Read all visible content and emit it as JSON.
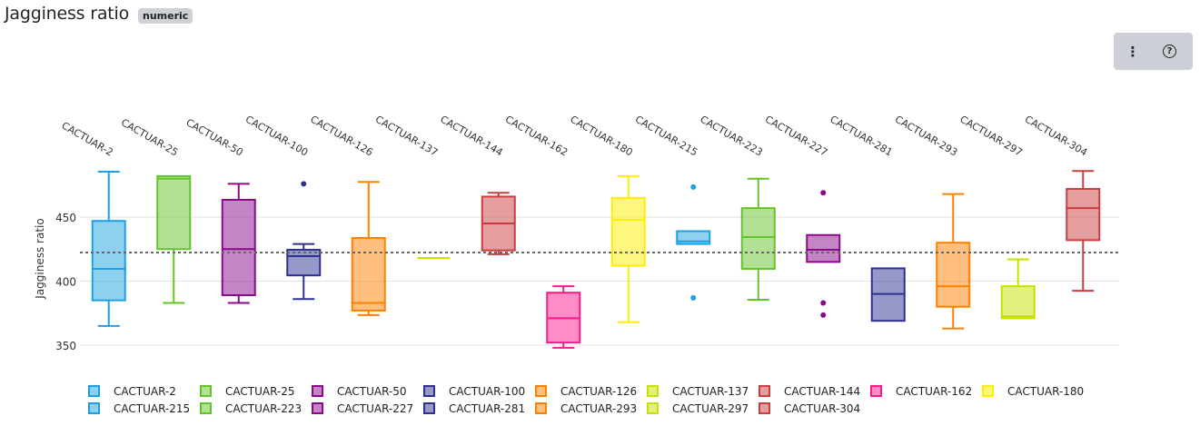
{
  "header": {
    "title": "Jagginess ratio",
    "badge": "numeric"
  },
  "toolbar": {
    "menu_icon": "more-vertical-icon",
    "help_icon": "help-circle-icon",
    "menu_glyph": "⋮",
    "help_glyph": "?"
  },
  "chart_data": {
    "type": "box",
    "title": "",
    "ylabel": "Jagginess ratio",
    "ylim": [
      343,
      495
    ],
    "yticks": [
      350,
      400,
      450
    ],
    "grid": true,
    "reference_line": 422.3,
    "legend_position": "bottom",
    "palette": [
      "#1ba1e2",
      "#66c22b",
      "#8b0a8b",
      "#2e3192",
      "#ff8000",
      "#c8e000",
      "#cc3d3d",
      "#ff1a8c",
      "#ffee00"
    ],
    "series": [
      {
        "name": "CACTUAR-2",
        "min": 365,
        "q1": 385,
        "median": 409.6,
        "q3": 447,
        "max": 485.5,
        "outliers": []
      },
      {
        "name": "CACTUAR-25",
        "min": 383,
        "q1": 425,
        "median": 480,
        "q3": 482,
        "max": 482,
        "outliers": []
      },
      {
        "name": "CACTUAR-50",
        "min": 383,
        "q1": 389,
        "median": 425,
        "q3": 463.5,
        "max": 476,
        "outliers": []
      },
      {
        "name": "CACTUAR-100",
        "min": 386,
        "q1": 404.5,
        "median": 419.5,
        "q3": 424.5,
        "max": 429,
        "outliers": [
          476
        ]
      },
      {
        "name": "CACTUAR-126",
        "min": 373.5,
        "q1": 377,
        "median": 383,
        "q3": 433.7,
        "max": 477.5,
        "outliers": []
      },
      {
        "name": "CACTUAR-137",
        "min": 418,
        "q1": 418,
        "median": 418,
        "q3": 418,
        "max": 418,
        "outliers": []
      },
      {
        "name": "CACTUAR-144",
        "min": 421,
        "q1": 424,
        "median": 445,
        "q3": 466,
        "max": 469,
        "outliers": []
      },
      {
        "name": "CACTUAR-162",
        "min": 348,
        "q1": 352,
        "median": 371,
        "q3": 391,
        "max": 396,
        "outliers": []
      },
      {
        "name": "CACTUAR-180",
        "min": 368,
        "q1": 412,
        "median": 448,
        "q3": 465,
        "max": 482,
        "outliers": []
      },
      {
        "name": "CACTUAR-215",
        "min": 429,
        "q1": 429,
        "median": 431,
        "q3": 439,
        "max": 439,
        "outliers": [
          473.5,
          387
        ]
      },
      {
        "name": "CACTUAR-223",
        "min": 385.5,
        "q1": 409.6,
        "median": 434.4,
        "q3": 457,
        "max": 480,
        "outliers": []
      },
      {
        "name": "CACTUAR-227",
        "min": 415,
        "q1": 415,
        "median": 424.5,
        "q3": 436,
        "max": 436,
        "outliers": [
          469,
          383,
          373.5
        ]
      },
      {
        "name": "CACTUAR-281",
        "min": 369,
        "q1": 369,
        "median": 390,
        "q3": 410,
        "max": 410,
        "outliers": []
      },
      {
        "name": "CACTUAR-293",
        "min": 363,
        "q1": 380,
        "median": 396,
        "q3": 430,
        "max": 468,
        "outliers": []
      },
      {
        "name": "CACTUAR-297",
        "min": 371,
        "q1": 371,
        "median": 372.5,
        "q3": 396,
        "max": 417,
        "outliers": []
      },
      {
        "name": "CACTUAR-304",
        "min": 392.5,
        "q1": 432,
        "median": 457,
        "q3": 472,
        "max": 486,
        "outliers": []
      }
    ]
  }
}
